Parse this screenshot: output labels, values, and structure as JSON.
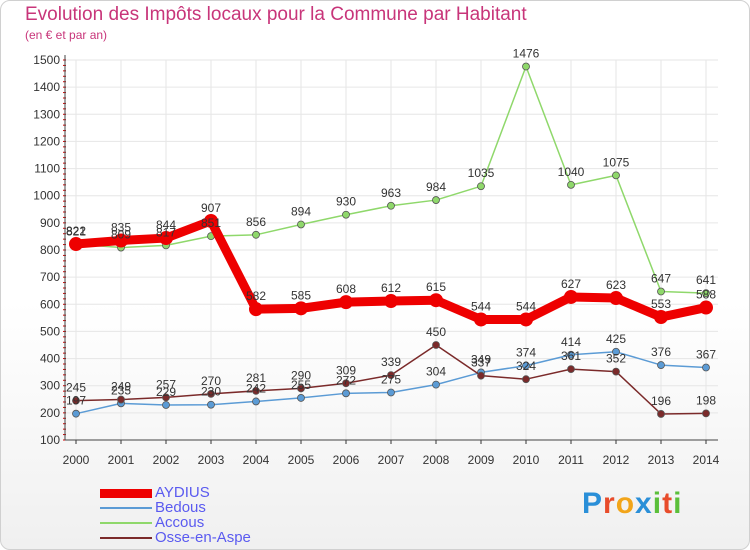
{
  "title": "Evolution des Impôts locaux pour la Commune par Habitant",
  "subtitle": "(en € et par an)",
  "logo": {
    "text": "Proxiti",
    "letters": [
      "P",
      "r",
      "o",
      "x",
      "i",
      "t",
      "i"
    ],
    "colors": [
      "#2a8fd8",
      "#e84c2b",
      "#f2a51a",
      "#2a8fd8",
      "#5bbf3a",
      "#e84c2b",
      "#5bbf3a"
    ]
  },
  "chart_data": {
    "type": "line",
    "x": [
      2000,
      2001,
      2002,
      2003,
      2004,
      2005,
      2006,
      2007,
      2008,
      2009,
      2010,
      2011,
      2012,
      2013,
      2014
    ],
    "ylim": [
      100,
      1500
    ],
    "yticks": [
      100,
      200,
      300,
      400,
      500,
      600,
      700,
      800,
      900,
      1000,
      1100,
      1200,
      1300,
      1400,
      1500
    ],
    "grid": true,
    "legend": "bottom-left",
    "series": [
      {
        "name": "AYDIUS",
        "color": "#ee0000",
        "values": [
          822,
          835,
          844,
          907,
          582,
          585,
          608,
          612,
          615,
          544,
          544,
          627,
          623,
          553,
          588
        ]
      },
      {
        "name": "Bedous",
        "color": "#5b9bd5",
        "values": [
          197,
          235,
          229,
          230,
          242,
          255,
          272,
          275,
          304,
          349,
          374,
          414,
          425,
          376,
          367
        ]
      },
      {
        "name": "Accous",
        "color": "#8fd86b",
        "values": [
          821,
          809,
          817,
          851,
          856,
          894,
          930,
          963,
          984,
          1035,
          1476,
          1040,
          1075,
          647,
          641
        ]
      },
      {
        "name": "Osse-en-Aspe",
        "color": "#7b2a2a",
        "values": [
          245,
          249,
          257,
          270,
          281,
          290,
          309,
          339,
          450,
          337,
          324,
          361,
          352,
          196,
          198
        ]
      }
    ]
  }
}
